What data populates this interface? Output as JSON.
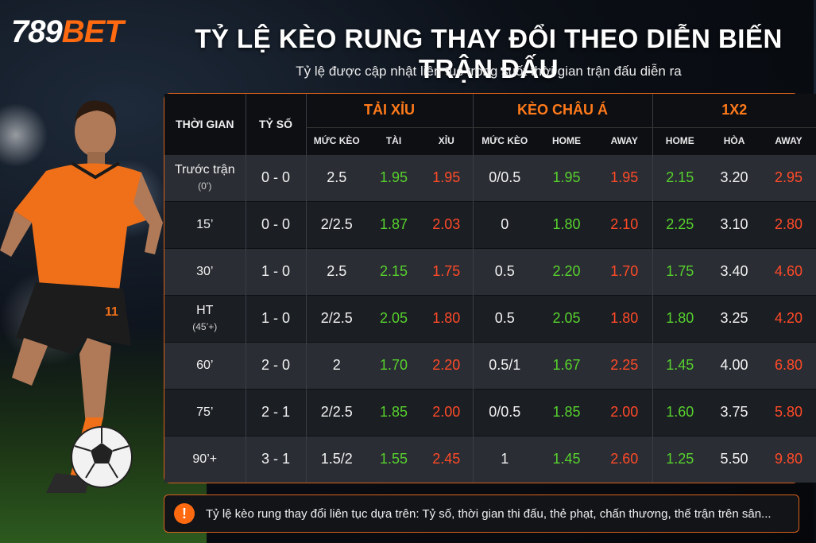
{
  "brand": {
    "number": "789",
    "name": "BET"
  },
  "title": "TỶ LỆ KÈO RUNG THAY ĐỔI THEO DIỄN BIẾN TRẬN ĐẤU",
  "subtitle": "Tỷ lệ được cập nhật liên tục trong suốt thời gian trận đấu diễn ra",
  "player": {
    "jersey_number": "11"
  },
  "table": {
    "col_time": "THỜI GIAN",
    "col_score": "TỶ SỐ",
    "groups": {
      "taixiu": "TẢI XỈU",
      "chaua": "KÈO CHÂU Á",
      "x12": "1X2"
    },
    "sub_headers": {
      "taixiu": [
        "MỨC KÈO",
        "TÀI",
        "XỈU"
      ],
      "chaua": [
        "MỨC KÈO",
        "HOME",
        "AWAY"
      ],
      "x12": [
        "HOME",
        "HÒA",
        "AWAY"
      ]
    },
    "rows": [
      {
        "time": "Trước trận",
        "time_sub": "(0’)",
        "score": "0 - 0",
        "tx": [
          "2.5",
          "1.95",
          "1.95"
        ],
        "ca": [
          "0/0.5",
          "1.95",
          "1.95"
        ],
        "x": [
          "2.15",
          "3.20",
          "2.95"
        ]
      },
      {
        "time": "15’",
        "time_sub": "",
        "score": "0 - 0",
        "tx": [
          "2/2.5",
          "1.87",
          "2.03"
        ],
        "ca": [
          "0",
          "1.80",
          "2.10"
        ],
        "x": [
          "2.25",
          "3.10",
          "2.80"
        ]
      },
      {
        "time": "30’",
        "time_sub": "",
        "score": "1 - 0",
        "tx": [
          "2.5",
          "2.15",
          "1.75"
        ],
        "ca": [
          "0.5",
          "2.20",
          "1.70"
        ],
        "x": [
          "1.75",
          "3.40",
          "4.60"
        ]
      },
      {
        "time": "HT",
        "time_sub": "(45’+)",
        "score": "1 - 0",
        "tx": [
          "2/2.5",
          "2.05",
          "1.80"
        ],
        "ca": [
          "0.5",
          "2.05",
          "1.80"
        ],
        "x": [
          "1.80",
          "3.25",
          "4.20"
        ]
      },
      {
        "time": "60’",
        "time_sub": "",
        "score": "2 - 0",
        "tx": [
          "2",
          "1.70",
          "2.20"
        ],
        "ca": [
          "0.5/1",
          "1.67",
          "2.25"
        ],
        "x": [
          "1.45",
          "4.00",
          "6.80"
        ]
      },
      {
        "time": "75’",
        "time_sub": "",
        "score": "2 - 1",
        "tx": [
          "2/2.5",
          "1.85",
          "2.00"
        ],
        "ca": [
          "0/0.5",
          "1.85",
          "2.00"
        ],
        "x": [
          "1.60",
          "3.75",
          "5.80"
        ]
      },
      {
        "time": "90’+",
        "time_sub": "",
        "score": "3 - 1",
        "tx": [
          "1.5/2",
          "1.55",
          "2.45"
        ],
        "ca": [
          "1",
          "1.45",
          "2.60"
        ],
        "x": [
          "1.25",
          "5.50",
          "9.80"
        ]
      }
    ]
  },
  "notice": {
    "icon": "warning-icon",
    "text": "Tỷ lệ kèo rung thay đổi liên tục dựa trên: Tỷ số, thời gian thi đấu, thẻ phạt, chấn thương, thế trận trên sân..."
  },
  "colors": {
    "accent": "#ff6a10",
    "up": "#57d12e",
    "down": "#ff4a28"
  }
}
